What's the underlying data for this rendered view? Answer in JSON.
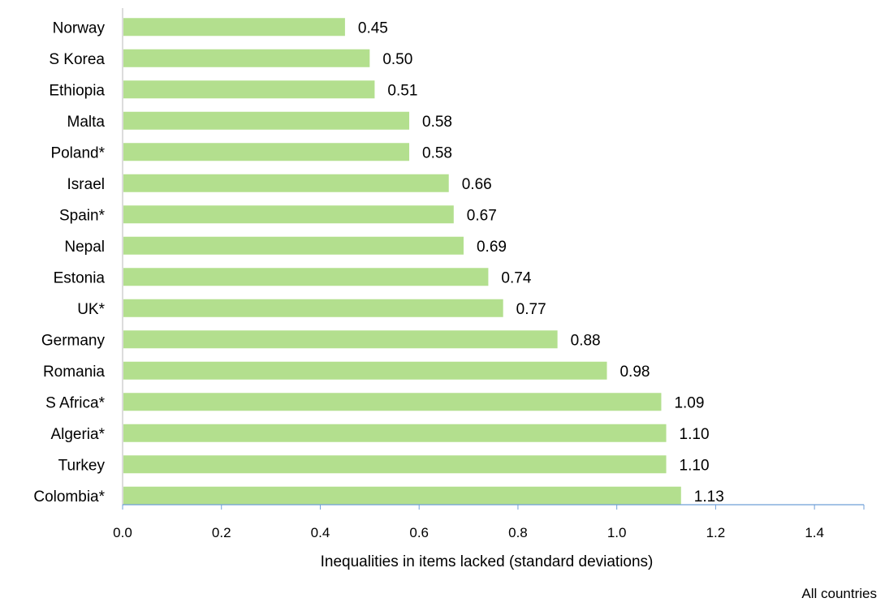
{
  "chart_data": {
    "type": "bar",
    "orientation": "horizontal",
    "categories": [
      "Norway",
      "S Korea",
      "Ethiopia",
      "Malta",
      "Poland*",
      "Israel",
      "Spain*",
      "Nepal",
      "Estonia",
      "UK*",
      "Germany",
      "Romania",
      "S Africa*",
      "Algeria*",
      "Turkey",
      "Colombia*"
    ],
    "values": [
      0.45,
      0.5,
      0.51,
      0.58,
      0.58,
      0.66,
      0.67,
      0.69,
      0.74,
      0.77,
      0.88,
      0.98,
      1.09,
      1.1,
      1.1,
      1.13
    ],
    "value_labels": [
      "0.45",
      "0.50",
      "0.51",
      "0.58",
      "0.58",
      "0.66",
      "0.67",
      "0.69",
      "0.74",
      "0.77",
      "0.88",
      "0.98",
      "1.09",
      "1.10",
      "1.10",
      "1.13"
    ],
    "xlabel": "Inequalities in items lacked (standard deviations)",
    "xlim": [
      0,
      1.5
    ],
    "xticks": [
      "0.0",
      "0.2",
      "0.4",
      "0.6",
      "0.8",
      "1.0",
      "1.2",
      "1.4"
    ],
    "bar_color": "#b3df8e",
    "axis_color": "#6f9fd8",
    "grid": false
  },
  "footnote": "All countries"
}
